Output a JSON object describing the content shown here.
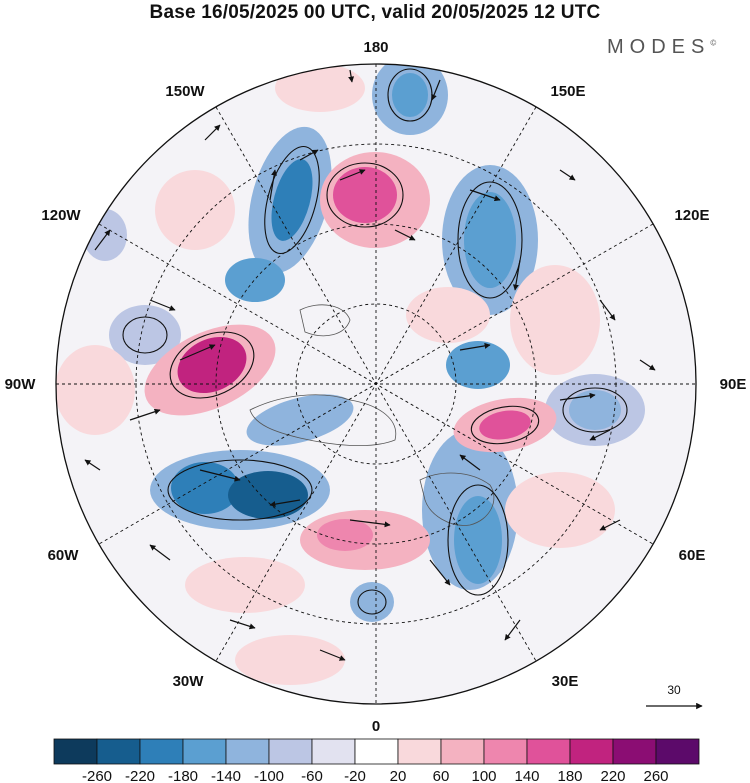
{
  "title": "Base 16/05/2025 00 UTC, valid 20/05/2025 12 UTC",
  "brand": "MODES",
  "brand_mark": "©",
  "lon_labels": {
    "deg180": "180",
    "deg150E": "150E",
    "deg120E": "120E",
    "deg90E": "90E",
    "deg60E": "60E",
    "deg30E": "30E",
    "deg0": "0",
    "deg30W": "30W",
    "deg60W": "60W",
    "deg90W": "90W",
    "deg120W": "120W",
    "deg150W": "150W"
  },
  "reference_vector": {
    "value": "30"
  },
  "colorbar": {
    "ticks": [
      "-260",
      "-220",
      "-180",
      "-140",
      "-100",
      "-60",
      "-20",
      "20",
      "60",
      "100",
      "140",
      "180",
      "220",
      "260"
    ],
    "colors": [
      "#0d3a5c",
      "#165d8e",
      "#2e7fb8",
      "#5b9fd1",
      "#8fb4dd",
      "#bcc6e4",
      "#e2e2f0",
      "#ffffff",
      "#f9d9dc",
      "#f4b2c1",
      "#ee86ae",
      "#e0529a",
      "#c1237f",
      "#8b0d73",
      "#5c0a6a"
    ]
  }
}
